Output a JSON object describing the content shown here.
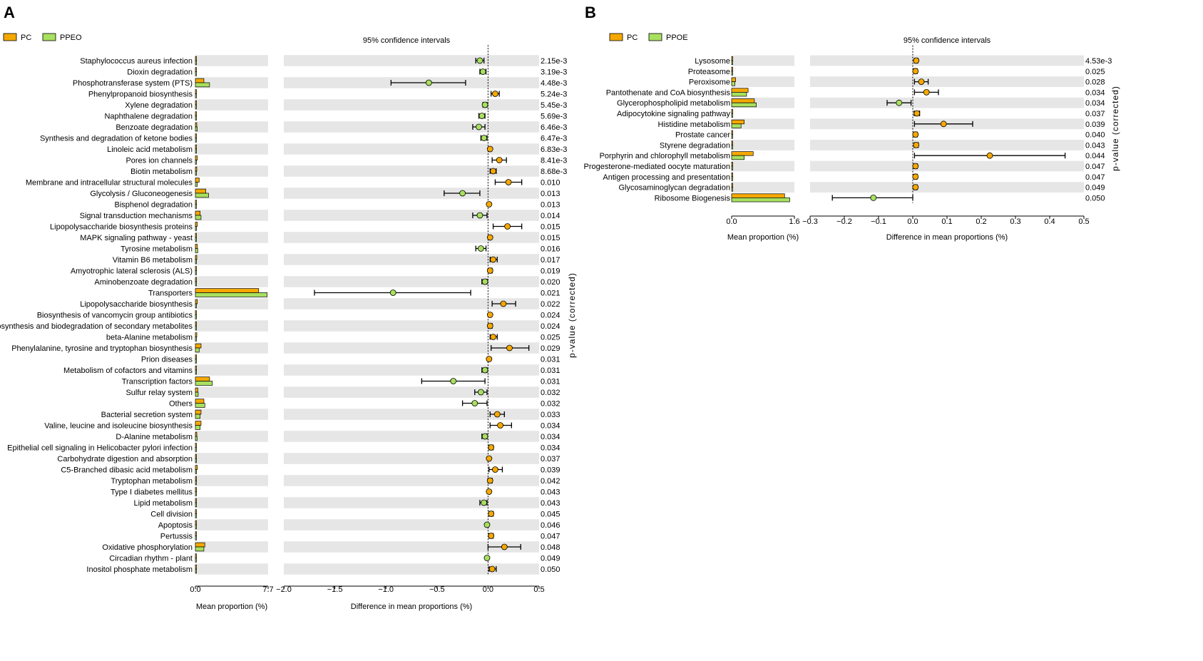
{
  "colors": {
    "pc": "#f5a800",
    "ppeo": "#a8e05f",
    "stripe": "#e6e6e6",
    "axis": "#000000"
  },
  "panels": [
    {
      "panel_label": "A",
      "legend": {
        "pc": "PC",
        "treatment": "PPEO"
      },
      "ci_title": "95% confidence intervals",
      "mean_axis_label": "Mean proportion (%)",
      "diff_axis_label": "Difference in mean proportions (%)",
      "p_axis_label": "p-value (corrected)",
      "mean_ticks": [
        "0.0",
        "7.7"
      ],
      "diff_ticks": [
        "−2.0",
        "−1.5",
        "−1.0",
        "−0.5",
        "0.0",
        "0.5"
      ]
    },
    {
      "panel_label": "B",
      "legend": {
        "pc": "PC",
        "treatment": "PPOE"
      },
      "ci_title": "95% confidence intervals",
      "mean_axis_label": "Mean proportion (%)",
      "diff_axis_label": "Difference in mean proportions (%)",
      "p_axis_label": "p-value (corrected)",
      "mean_ticks": [
        "0.0",
        "1.6"
      ],
      "diff_ticks": [
        "−0.3",
        "−0.2",
        "−0.1",
        "0.0",
        "0.1",
        "0.2",
        "0.3",
        "0.4",
        "0.5"
      ]
    }
  ],
  "chart_data": [
    {
      "type": "extended_error_bar",
      "title": "95% confidence intervals",
      "groups": [
        "PC",
        "PPEO"
      ],
      "mean_xlim": [
        0,
        7.7
      ],
      "diff_xlim": [
        -2.0,
        0.5
      ],
      "xlabel_mean": "Mean proportion (%)",
      "xlabel_diff": "Difference in mean proportions (%)",
      "ylabel_right": "p-value (corrected)",
      "rows": [
        {
          "label": "Staphylococcus aureus infection",
          "pc": 0.05,
          "trt": 0.08,
          "diff": -0.08,
          "ci": [
            -0.12,
            -0.04
          ],
          "p": "2.15e-3"
        },
        {
          "label": "Dioxin degradation",
          "pc": 0.05,
          "trt": 0.07,
          "diff": -0.05,
          "ci": [
            -0.08,
            -0.02
          ],
          "p": "3.19e-3"
        },
        {
          "label": "Phosphotransferase system (PTS)",
          "pc": 0.9,
          "trt": 1.5,
          "diff": -0.58,
          "ci": [
            -0.95,
            -0.22
          ],
          "p": "4.48e-3"
        },
        {
          "label": "Phenylpropanoid biosynthesis",
          "pc": 0.1,
          "trt": 0.05,
          "diff": 0.07,
          "ci": [
            0.03,
            0.11
          ],
          "p": "5.24e-3"
        },
        {
          "label": "Xylene degradation",
          "pc": 0.05,
          "trt": 0.07,
          "diff": -0.03,
          "ci": [
            -0.05,
            -0.01
          ],
          "p": "5.45e-3"
        },
        {
          "label": "Naphthalene degradation",
          "pc": 0.1,
          "trt": 0.12,
          "diff": -0.06,
          "ci": [
            -0.09,
            -0.03
          ],
          "p": "5.69e-3"
        },
        {
          "label": "Benzoate degradation",
          "pc": 0.15,
          "trt": 0.2,
          "diff": -0.09,
          "ci": [
            -0.15,
            -0.03
          ],
          "p": "6.46e-3"
        },
        {
          "label": "Synthesis and degradation of ketone bodies",
          "pc": 0.05,
          "trt": 0.07,
          "diff": -0.04,
          "ci": [
            -0.07,
            -0.01
          ],
          "p": "6.47e-3"
        },
        {
          "label": "Linoleic acid metabolism",
          "pc": 0.03,
          "trt": 0.02,
          "diff": 0.02,
          "ci": [
            0.01,
            0.03
          ],
          "p": "6.83e-3"
        },
        {
          "label": "Pores ion channels",
          "pc": 0.2,
          "trt": 0.1,
          "diff": 0.11,
          "ci": [
            0.04,
            0.18
          ],
          "p": "8.41e-3"
        },
        {
          "label": "Biotin metabolism",
          "pc": 0.15,
          "trt": 0.1,
          "diff": 0.05,
          "ci": [
            0.02,
            0.08
          ],
          "p": "8.68e-3"
        },
        {
          "label": "Membrane and intracellular structural molecules",
          "pc": 0.4,
          "trt": 0.2,
          "diff": 0.2,
          "ci": [
            0.07,
            0.33
          ],
          "p": "0.010"
        },
        {
          "label": "Glycolysis / Gluconeogenesis",
          "pc": 1.1,
          "trt": 1.4,
          "diff": -0.25,
          "ci": [
            -0.43,
            -0.08
          ],
          "p": "0.013"
        },
        {
          "label": "Bisphenol degradation",
          "pc": 0.03,
          "trt": 0.02,
          "diff": 0.01,
          "ci": [
            0.0,
            0.02
          ],
          "p": "0.013"
        },
        {
          "label": "Signal transduction mechanisms",
          "pc": 0.5,
          "trt": 0.6,
          "diff": -0.08,
          "ci": [
            -0.15,
            -0.01
          ],
          "p": "0.014"
        },
        {
          "label": "Lipopolysaccharide biosynthesis proteins",
          "pc": 0.2,
          "trt": 0.1,
          "diff": 0.19,
          "ci": [
            0.05,
            0.33
          ],
          "p": "0.015"
        },
        {
          "label": "MAPK signaling pathway - yeast",
          "pc": 0.04,
          "trt": 0.03,
          "diff": 0.02,
          "ci": [
            0.01,
            0.03
          ],
          "p": "0.015"
        },
        {
          "label": "Tyrosine metabolism",
          "pc": 0.2,
          "trt": 0.25,
          "diff": -0.07,
          "ci": [
            -0.12,
            -0.02
          ],
          "p": "0.016"
        },
        {
          "label": "Vitamin B6 metabolism",
          "pc": 0.15,
          "trt": 0.1,
          "diff": 0.05,
          "ci": [
            0.02,
            0.09
          ],
          "p": "0.017"
        },
        {
          "label": "Amyotrophic lateral sclerosis (ALS)",
          "pc": 0.04,
          "trt": 0.03,
          "diff": 0.02,
          "ci": [
            0.01,
            0.04
          ],
          "p": "0.019"
        },
        {
          "label": "Aminobenzoate degradation",
          "pc": 0.1,
          "trt": 0.12,
          "diff": -0.03,
          "ci": [
            -0.06,
            -0.01
          ],
          "p": "0.020"
        },
        {
          "label": "Transporters",
          "pc": 6.7,
          "trt": 7.6,
          "diff": -0.93,
          "ci": [
            -1.7,
            -0.17
          ],
          "p": "0.021"
        },
        {
          "label": "Lipopolysaccharide biosynthesis",
          "pc": 0.2,
          "trt": 0.08,
          "diff": 0.15,
          "ci": [
            0.04,
            0.27
          ],
          "p": "0.022"
        },
        {
          "label": "Biosynthesis of vancomycin group antibiotics",
          "pc": 0.05,
          "trt": 0.04,
          "diff": 0.02,
          "ci": [
            0.01,
            0.03
          ],
          "p": "0.024"
        },
        {
          "label": "Biosynthesis and biodegradation of secondary metabolites",
          "pc": 0.06,
          "trt": 0.05,
          "diff": 0.02,
          "ci": [
            0.01,
            0.04
          ],
          "p": "0.024"
        },
        {
          "label": "beta-Alanine metabolism",
          "pc": 0.15,
          "trt": 0.1,
          "diff": 0.05,
          "ci": [
            0.02,
            0.09
          ],
          "p": "0.025"
        },
        {
          "label": "Phenylalanine, tyrosine and tryptophan biosynthesis",
          "pc": 0.6,
          "trt": 0.4,
          "diff": 0.21,
          "ci": [
            0.03,
            0.4
          ],
          "p": "0.029"
        },
        {
          "label": "Prion diseases",
          "pc": 0.03,
          "trt": 0.02,
          "diff": 0.01,
          "ci": [
            0.0,
            0.02
          ],
          "p": "0.031"
        },
        {
          "label": "Metabolism of cofactors and vitamins",
          "pc": 0.1,
          "trt": 0.12,
          "diff": -0.03,
          "ci": [
            -0.06,
            -0.01
          ],
          "p": "0.031"
        },
        {
          "label": "Transcription factors",
          "pc": 1.5,
          "trt": 1.8,
          "diff": -0.34,
          "ci": [
            -0.65,
            -0.03
          ],
          "p": "0.031"
        },
        {
          "label": "Sulfur relay system",
          "pc": 0.25,
          "trt": 0.3,
          "diff": -0.07,
          "ci": [
            -0.13,
            -0.01
          ],
          "p": "0.032"
        },
        {
          "label": "Others",
          "pc": 0.9,
          "trt": 1.0,
          "diff": -0.13,
          "ci": [
            -0.25,
            -0.01
          ],
          "p": "0.032"
        },
        {
          "label": "Bacterial secretion system",
          "pc": 0.6,
          "trt": 0.5,
          "diff": 0.09,
          "ci": [
            0.02,
            0.16
          ],
          "p": "0.033"
        },
        {
          "label": "Valine, leucine and isoleucine biosynthesis",
          "pc": 0.6,
          "trt": 0.5,
          "diff": 0.12,
          "ci": [
            0.02,
            0.23
          ],
          "p": "0.034"
        },
        {
          "label": "D-Alanine metabolism",
          "pc": 0.15,
          "trt": 0.18,
          "diff": -0.03,
          "ci": [
            -0.06,
            -0.01
          ],
          "p": "0.034"
        },
        {
          "label": "Epithelial cell signaling in Helicobacter pylori infection",
          "pc": 0.06,
          "trt": 0.05,
          "diff": 0.03,
          "ci": [
            0.01,
            0.05
          ],
          "p": "0.034"
        },
        {
          "label": "Carbohydrate digestion and absorption",
          "pc": 0.03,
          "trt": 0.02,
          "diff": 0.01,
          "ci": [
            0.0,
            0.02
          ],
          "p": "0.037"
        },
        {
          "label": "C5-Branched dibasic acid metabolism",
          "pc": 0.2,
          "trt": 0.12,
          "diff": 0.07,
          "ci": [
            0.01,
            0.14
          ],
          "p": "0.039"
        },
        {
          "label": "Tryptophan metabolism",
          "pc": 0.06,
          "trt": 0.05,
          "diff": 0.02,
          "ci": [
            0.0,
            0.04
          ],
          "p": "0.042"
        },
        {
          "label": "Type I diabetes mellitus",
          "pc": 0.04,
          "trt": 0.03,
          "diff": 0.01,
          "ci": [
            0.0,
            0.02
          ],
          "p": "0.043"
        },
        {
          "label": "Lipid metabolism",
          "pc": 0.1,
          "trt": 0.12,
          "diff": -0.04,
          "ci": [
            -0.08,
            -0.01
          ],
          "p": "0.043"
        },
        {
          "label": "Cell division",
          "pc": 0.07,
          "trt": 0.05,
          "diff": 0.03,
          "ci": [
            0.01,
            0.05
          ],
          "p": "0.045"
        },
        {
          "label": "Apoptosis",
          "pc": 0.03,
          "trt": 0.03,
          "diff": -0.01,
          "ci": [
            -0.02,
            0.0
          ],
          "p": "0.046"
        },
        {
          "label": "Pertussis",
          "pc": 0.05,
          "trt": 0.04,
          "diff": 0.03,
          "ci": [
            0.01,
            0.05
          ],
          "p": "0.047"
        },
        {
          "label": "Oxidative phosphorylation",
          "pc": 1.0,
          "trt": 0.9,
          "diff": 0.16,
          "ci": [
            0.0,
            0.32
          ],
          "p": "0.048"
        },
        {
          "label": "Circadian rhythm - plant",
          "pc": 0.03,
          "trt": 0.03,
          "diff": -0.01,
          "ci": [
            -0.02,
            0.0
          ],
          "p": "0.049"
        },
        {
          "label": "Inositol phosphate metabolism",
          "pc": 0.1,
          "trt": 0.08,
          "diff": 0.04,
          "ci": [
            0.01,
            0.08
          ],
          "p": "0.050"
        }
      ]
    },
    {
      "type": "extended_error_bar",
      "title": "95% confidence intervals",
      "groups": [
        "PC",
        "PPOE"
      ],
      "mean_xlim": [
        0,
        1.6
      ],
      "diff_xlim": [
        -0.3,
        0.5
      ],
      "xlabel_mean": "Mean proportion (%)",
      "xlabel_diff": "Difference in mean proportions (%)",
      "ylabel_right": "p-value (corrected)",
      "rows": [
        {
          "label": "Lysosome",
          "pc": 0.02,
          "trt": 0.015,
          "diff": 0.01,
          "ci": [
            0.005,
            0.015
          ],
          "p": "4.53e-3"
        },
        {
          "label": "Proteasome",
          "pc": 0.02,
          "trt": 0.015,
          "diff": 0.008,
          "ci": [
            0.003,
            0.013
          ],
          "p": "0.025"
        },
        {
          "label": "Peroxisome",
          "pc": 0.1,
          "trt": 0.08,
          "diff": 0.025,
          "ci": [
            0.005,
            0.045
          ],
          "p": "0.028"
        },
        {
          "label": "Pantothenate and CoA biosynthesis",
          "pc": 0.42,
          "trt": 0.38,
          "diff": 0.04,
          "ci": [
            0.005,
            0.075
          ],
          "p": "0.034"
        },
        {
          "label": "Glycerophospholipid metabolism",
          "pc": 0.58,
          "trt": 0.63,
          "diff": -0.04,
          "ci": [
            -0.075,
            -0.005
          ],
          "p": "0.034"
        },
        {
          "label": "Adipocytokine signaling pathway",
          "pc": 0.02,
          "trt": 0.015,
          "diff": 0.012,
          "ci": [
            0.004,
            0.02
          ],
          "p": "0.037"
        },
        {
          "label": "Histidine metabolism",
          "pc": 0.32,
          "trt": 0.24,
          "diff": 0.09,
          "ci": [
            0.005,
            0.175
          ],
          "p": "0.039"
        },
        {
          "label": "Prostate cancer",
          "pc": 0.02,
          "trt": 0.015,
          "diff": 0.008,
          "ci": [
            0.003,
            0.013
          ],
          "p": "0.040"
        },
        {
          "label": "Styrene degradation",
          "pc": 0.02,
          "trt": 0.015,
          "diff": 0.01,
          "ci": [
            0.004,
            0.016
          ],
          "p": "0.043"
        },
        {
          "label": "Porphyrin and chlorophyll metabolism",
          "pc": 0.55,
          "trt": 0.32,
          "diff": 0.225,
          "ci": [
            0.005,
            0.445
          ],
          "p": "0.044"
        },
        {
          "label": "Progesterone-mediated oocyte maturation",
          "pc": 0.02,
          "trt": 0.015,
          "diff": 0.008,
          "ci": [
            0.003,
            0.013
          ],
          "p": "0.047"
        },
        {
          "label": "Antigen processing and presentation",
          "pc": 0.02,
          "trt": 0.015,
          "diff": 0.008,
          "ci": [
            0.003,
            0.013
          ],
          "p": "0.047"
        },
        {
          "label": "Glycosaminoglycan degradation",
          "pc": 0.02,
          "trt": 0.015,
          "diff": 0.008,
          "ci": [
            0.003,
            0.013
          ],
          "p": "0.049"
        },
        {
          "label": "Ribosome Biogenesis",
          "pc": 1.35,
          "trt": 1.48,
          "diff": -0.115,
          "ci": [
            -0.235,
            0.0
          ],
          "p": "0.050"
        }
      ]
    }
  ]
}
